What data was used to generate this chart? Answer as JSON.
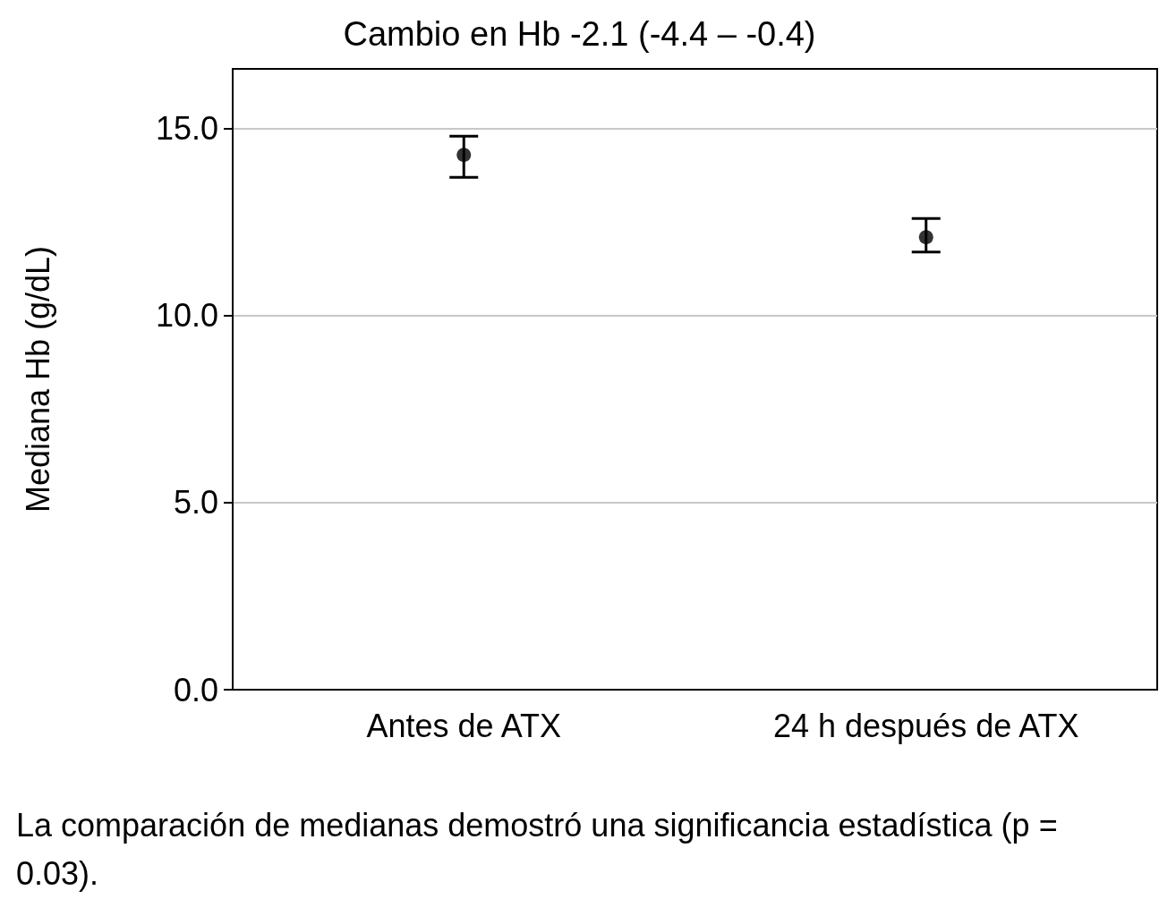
{
  "chart_data": {
    "type": "scatter",
    "title": "Cambio en Hb -2.1 (-4.4 – -0.4)",
    "ylabel": "Mediana Hb (g/dL)",
    "categories": [
      "Antes de ATX",
      "24 h después de ATX"
    ],
    "series": [
      {
        "color": "#000000",
        "values": [
          14.3,
          12.1
        ],
        "errors": [
          [
            13.7,
            14.8
          ],
          [
            11.7,
            12.6
          ]
        ]
      }
    ],
    "ylim": [
      0,
      16.6
    ],
    "yticks": [
      {
        "value": 0,
        "label": "0.0"
      },
      {
        "value": 5,
        "label": "5.0"
      },
      {
        "value": 10,
        "label": "10.0"
      },
      {
        "value": 15,
        "label": "15.0"
      }
    ],
    "grid": "y",
    "marker": "circle",
    "annotations": [
      "La comparación de medianas demostró una significancia estadística (p = 0.03)."
    ]
  }
}
